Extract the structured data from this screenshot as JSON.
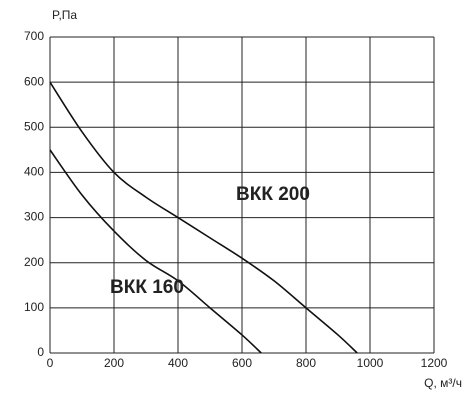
{
  "chart_data": {
    "type": "line",
    "y_label": "P,Па",
    "x_label": "Q, м³/ч",
    "xlim": [
      0,
      1200
    ],
    "xticks": [
      0,
      200,
      400,
      600,
      800,
      1000,
      1200
    ],
    "ylim": [
      0,
      700
    ],
    "yticks": [
      0,
      100,
      200,
      300,
      400,
      500,
      600,
      700
    ],
    "grid": true,
    "series": [
      {
        "name": "ВКК 200",
        "color": "#111111",
        "x": [
          0,
          100,
          200,
          300,
          400,
          500,
          600,
          700,
          800,
          900,
          960
        ],
        "values": [
          600,
          490,
          400,
          345,
          300,
          255,
          210,
          160,
          100,
          40,
          0
        ]
      },
      {
        "name": "ВКК 160",
        "color": "#111111",
        "x": [
          0,
          100,
          200,
          300,
          400,
          500,
          600,
          660
        ],
        "values": [
          450,
          350,
          270,
          205,
          160,
          100,
          40,
          0
        ]
      }
    ]
  }
}
